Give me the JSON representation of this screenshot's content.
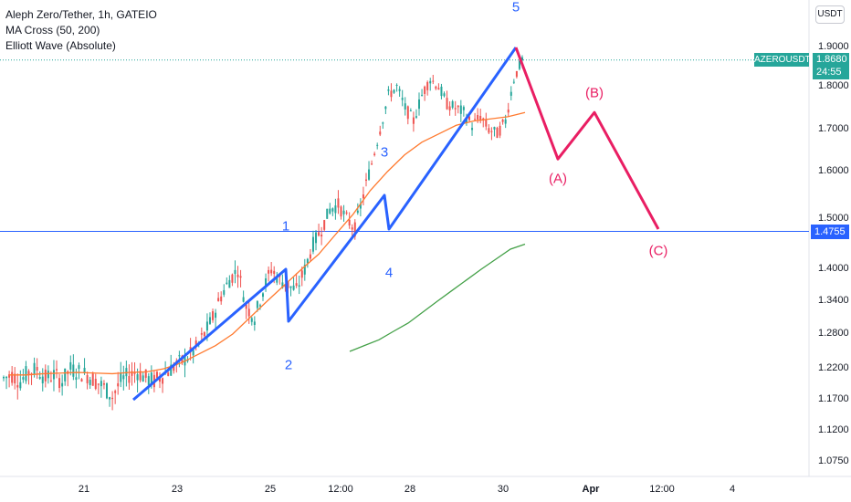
{
  "legend": {
    "title": "Aleph Zero/Tether, 1h, GATEIO",
    "indicator1": "MA Cross (50, 200)",
    "indicator2": "Elliott Wave (Absolute)"
  },
  "currency": "USDT",
  "symbol": "AZEROUSDT",
  "last_price": "1.8680",
  "countdown": "24:55",
  "horizontal_level": "1.4755",
  "colors": {
    "up": "#26a69a",
    "down": "#ef5350",
    "ma50": "#ff7a2f",
    "ma200": "#43a047",
    "wave_impulse": "#2962ff",
    "wave_correction": "#e91e63"
  },
  "chart_data": {
    "type": "candlestick",
    "y_ticks": [
      "1.9000",
      "1.8000",
      "1.7000",
      "1.6000",
      "1.5000",
      "1.4000",
      "1.3400",
      "1.2800",
      "1.2200",
      "1.1700",
      "1.1200",
      "1.0750"
    ],
    "x_ticks": [
      "21",
      "23",
      "25",
      "12:00",
      "28",
      "30",
      "Apr",
      "12:00",
      "4"
    ],
    "price_close_path": [
      1.205,
      1.21,
      1.2,
      1.215,
      1.22,
      1.205,
      1.21,
      1.2,
      1.22,
      1.215,
      1.21,
      1.2,
      1.19,
      1.175,
      1.2,
      1.21,
      1.215,
      1.205,
      1.2,
      1.21,
      1.22,
      1.23,
      1.24,
      1.255,
      1.28,
      1.31,
      1.35,
      1.38,
      1.4,
      1.33,
      1.31,
      1.36,
      1.4,
      1.38,
      1.37,
      1.36,
      1.4,
      1.45,
      1.48,
      1.52,
      1.53,
      1.5,
      1.48,
      1.55,
      1.62,
      1.7,
      1.78,
      1.8,
      1.75,
      1.72,
      1.78,
      1.82,
      1.8,
      1.76,
      1.75,
      1.74,
      1.71,
      1.73,
      1.7,
      1.69,
      1.72,
      1.82,
      1.868
    ],
    "ma50": [
      1.21,
      1.21,
      1.212,
      1.213,
      1.214,
      1.213,
      1.212,
      1.214,
      1.215,
      1.22,
      1.23,
      1.245,
      1.26,
      1.28,
      1.31,
      1.34,
      1.37,
      1.4,
      1.43,
      1.47,
      1.51,
      1.56,
      1.6,
      1.64,
      1.67,
      1.69,
      1.71,
      1.72,
      1.725,
      1.73,
      1.74
    ],
    "ma200": [
      1.25,
      1.26,
      1.27,
      1.285,
      1.3,
      1.32,
      1.34,
      1.36,
      1.38,
      1.4,
      1.42,
      1.44,
      1.45
    ],
    "elliott_impulse": [
      {
        "label": "",
        "price": 1.17
      },
      {
        "label": "1",
        "price": 1.4
      },
      {
        "label": "2",
        "price": 1.3
      },
      {
        "label": "3",
        "price": 1.55
      },
      {
        "label": "4",
        "price": 1.48
      },
      {
        "label": "5",
        "price": 1.9
      }
    ],
    "elliott_correction": [
      {
        "label": "(A)",
        "price": 1.63
      },
      {
        "label": "(B)",
        "price": 1.74
      },
      {
        "label": "(C)",
        "price": 1.48
      }
    ],
    "horizontal_line": 1.4755,
    "last_price": 1.868
  },
  "waves": {
    "w1": "1",
    "w2": "2",
    "w3": "3",
    "w4": "4",
    "w5": "5",
    "wA": "(A)",
    "wB": "(B)",
    "wC": "(C)"
  }
}
